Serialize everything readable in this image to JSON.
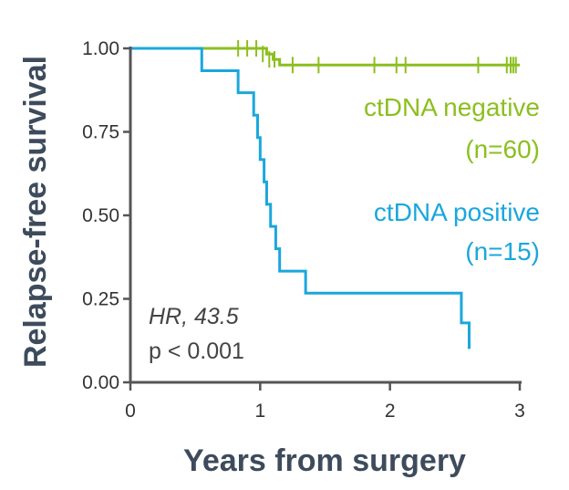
{
  "chart_data": {
    "type": "line",
    "xlabel": "Years from surgery",
    "ylabel": "Relapse-free survival",
    "xlim": [
      0,
      3
    ],
    "ylim": [
      0,
      1
    ],
    "x_ticks": [
      0,
      1,
      2,
      3
    ],
    "x_tick_labels": [
      "0",
      "1",
      "2",
      "3"
    ],
    "y_ticks": [
      0,
      0.25,
      0.5,
      0.75,
      1.0
    ],
    "y_tick_labels": [
      "0.00",
      "0.25",
      "0.50",
      "0.75",
      "1.00"
    ],
    "grid": false,
    "series": [
      {
        "name": "ctDNA negative",
        "n_label": "(n=60)",
        "color": "#8cbf1f",
        "steps": [
          [
            0,
            1.0
          ],
          [
            1.05,
            0.983
          ],
          [
            1.1,
            0.967
          ],
          [
            1.15,
            0.95
          ],
          [
            3.0,
            0.95
          ]
        ],
        "censored": [
          [
            0.83,
            1.0
          ],
          [
            0.9,
            1.0
          ],
          [
            0.97,
            1.0
          ],
          [
            1.02,
            0.983
          ],
          [
            1.07,
            0.967
          ],
          [
            1.11,
            0.967
          ],
          [
            1.25,
            0.95
          ],
          [
            1.45,
            0.95
          ],
          [
            1.88,
            0.95
          ],
          [
            2.05,
            0.95
          ],
          [
            2.12,
            0.95
          ],
          [
            2.68,
            0.95
          ],
          [
            2.9,
            0.95
          ],
          [
            2.93,
            0.95
          ],
          [
            2.95,
            0.95
          ],
          [
            2.97,
            0.95
          ]
        ]
      },
      {
        "name": "ctDNA positive",
        "n_label": "(n=15)",
        "color": "#1aa7dc",
        "steps": [
          [
            0,
            1.0
          ],
          [
            0.55,
            0.933
          ],
          [
            0.83,
            0.867
          ],
          [
            0.95,
            0.8
          ],
          [
            0.98,
            0.733
          ],
          [
            1.0,
            0.667
          ],
          [
            1.03,
            0.6
          ],
          [
            1.05,
            0.533
          ],
          [
            1.08,
            0.467
          ],
          [
            1.12,
            0.4
          ],
          [
            1.15,
            0.333
          ],
          [
            1.35,
            0.267
          ],
          [
            2.55,
            0.178
          ],
          [
            2.61,
            0.1
          ]
        ],
        "censored": []
      }
    ],
    "annotation_hr": "HR, 43.5",
    "annotation_p": "p < 0.001"
  }
}
